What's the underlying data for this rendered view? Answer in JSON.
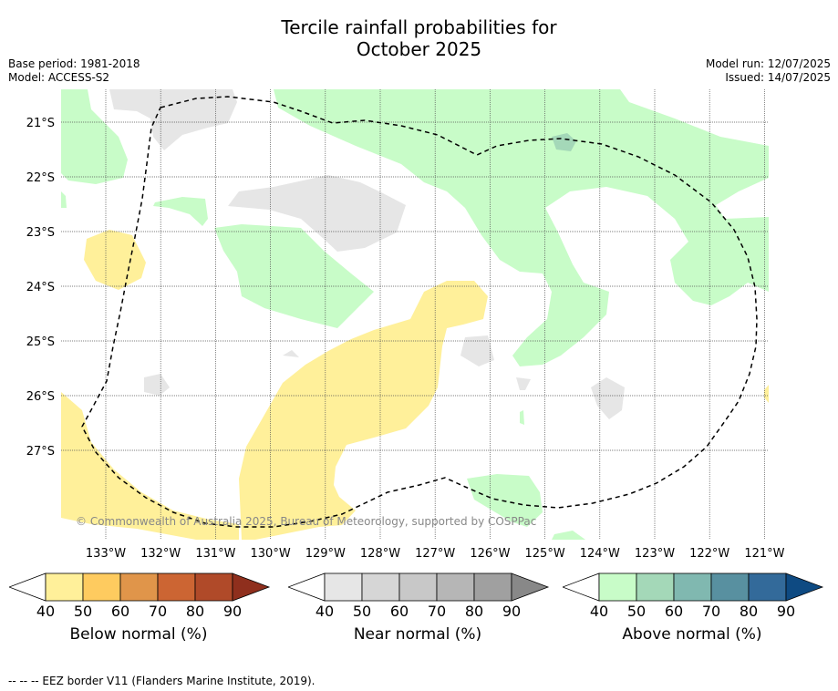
{
  "title_line1": "Tercile rainfall probabilities for",
  "title_line2": "October 2025",
  "base_period": "Base period: 1981-2018",
  "model": "Model: ACCESS-S2",
  "model_run": "Model run: 12/07/2025",
  "issued": "Issued: 14/07/2025",
  "copyright": "© Commonwealth of Australia 2025, Bureau of Meteorology, supported by COSPPac",
  "footnote": "--  --  -- EEZ border V11 (Flanders Marine Institute, 2019).",
  "lat_labels": [
    "21°S",
    "22°S",
    "23°S",
    "24°S",
    "25°S",
    "26°S",
    "27°S"
  ],
  "lon_labels": [
    "133°W",
    "132°W",
    "131°W",
    "130°W",
    "129°W",
    "128°W",
    "127°W",
    "126°W",
    "125°W",
    "124°W",
    "123°W",
    "122°W",
    "121°W"
  ],
  "colorbars": [
    {
      "label": "Below normal (%)",
      "ticks": [
        "40",
        "50",
        "60",
        "70",
        "80",
        "90"
      ],
      "colors": [
        "#ffffff",
        "#fff09a",
        "#fecb5f",
        "#e0954a",
        "#cc6533",
        "#b04a29",
        "#8f2f1d"
      ]
    },
    {
      "label": "Near normal (%)",
      "ticks": [
        "40",
        "50",
        "60",
        "70",
        "80",
        "90"
      ],
      "colors": [
        "#ffffff",
        "#e6e6e6",
        "#d6d6d6",
        "#c8c8c8",
        "#b6b6b6",
        "#a0a0a0",
        "#888888"
      ]
    },
    {
      "label": "Above normal (%)",
      "ticks": [
        "40",
        "50",
        "60",
        "70",
        "80",
        "90"
      ],
      "colors": [
        "#ffffff",
        "#c8fcc8",
        "#a4d8b8",
        "#80b8b0",
        "#5890a0",
        "#336a9a",
        "#0e4a82"
      ]
    }
  ],
  "colors": {
    "below_light": "#fff09a",
    "near_light": "#e6e6e6",
    "above_light": "#c8fcc8",
    "above_medium": "#a4d8b8",
    "copyright_text": "#888888"
  }
}
